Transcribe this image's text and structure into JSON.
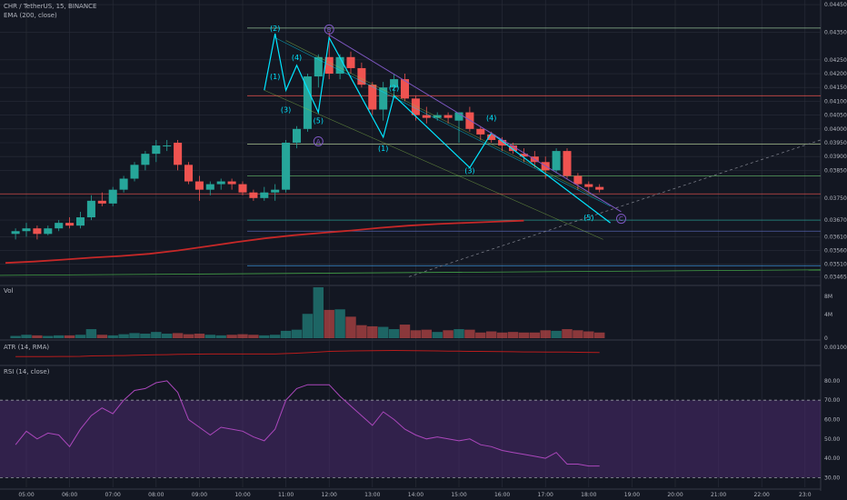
{
  "header": {
    "symbol_line": "CHR / TetherUS, 15, BINANCE",
    "ema_label": "EMA (200, close)",
    "vol_label": "Vol",
    "atr_label": "ATR (14, RMA)",
    "rsi_label": "RSI (14, close)"
  },
  "colors": {
    "background": "#131722",
    "bull": "#26a69a",
    "bear": "#ef5350",
    "ema": "#c62828",
    "wave": "#00e5ff",
    "abc": "#7e57c2",
    "rsi_band": "#4a2a6e",
    "rsi_line": "#ab47bc",
    "grid": "#2a2e39"
  },
  "chart_data": [
    {
      "type": "candlestick",
      "title": "CHR / TetherUS, 15, BINANCE",
      "x_ticks": [
        "05:00",
        "06:00",
        "07:00",
        "08:00",
        "09:00",
        "10:00",
        "11:00",
        "12:00",
        "13:00",
        "14:00",
        "15:00",
        "16:00",
        "17:00",
        "18:00",
        "19:00",
        "20:00",
        "21:00",
        "22:00",
        "23:0"
      ],
      "y_ticks": [
        "0.04450",
        "0.04350",
        "0.04250",
        "0.04200",
        "0.04150",
        "0.04100",
        "0.04050",
        "0.04000",
        "0.03950",
        "0.03900",
        "0.03850",
        "0.03750",
        "0.03670",
        "0.03610",
        "0.03560",
        "0.03510",
        "0.03465"
      ],
      "ylim": [
        0.0344,
        0.0446
      ],
      "x_start": "04:45",
      "bar_minutes": 15,
      "candles": [
        {
          "o": 0.0362,
          "h": 0.0364,
          "l": 0.036,
          "c": 0.0363
        },
        {
          "o": 0.0363,
          "h": 0.0366,
          "l": 0.0361,
          "c": 0.0364
        },
        {
          "o": 0.0364,
          "h": 0.0365,
          "l": 0.036,
          "c": 0.0362
        },
        {
          "o": 0.0362,
          "h": 0.0365,
          "l": 0.03615,
          "c": 0.0364
        },
        {
          "o": 0.0364,
          "h": 0.0367,
          "l": 0.0363,
          "c": 0.0366
        },
        {
          "o": 0.0366,
          "h": 0.0368,
          "l": 0.0364,
          "c": 0.0365
        },
        {
          "o": 0.0365,
          "h": 0.037,
          "l": 0.0364,
          "c": 0.0368
        },
        {
          "o": 0.0368,
          "h": 0.0376,
          "l": 0.0367,
          "c": 0.0374
        },
        {
          "o": 0.0374,
          "h": 0.0377,
          "l": 0.0372,
          "c": 0.0373
        },
        {
          "o": 0.0373,
          "h": 0.0379,
          "l": 0.0372,
          "c": 0.0378
        },
        {
          "o": 0.0378,
          "h": 0.0383,
          "l": 0.0377,
          "c": 0.0382
        },
        {
          "o": 0.0382,
          "h": 0.0388,
          "l": 0.0381,
          "c": 0.0387
        },
        {
          "o": 0.0387,
          "h": 0.0392,
          "l": 0.0385,
          "c": 0.0391
        },
        {
          "o": 0.0391,
          "h": 0.0396,
          "l": 0.0388,
          "c": 0.0394
        },
        {
          "o": 0.0394,
          "h": 0.0396,
          "l": 0.0392,
          "c": 0.0394
        },
        {
          "o": 0.0395,
          "h": 0.0396,
          "l": 0.0385,
          "c": 0.0387
        },
        {
          "o": 0.0387,
          "h": 0.0388,
          "l": 0.038,
          "c": 0.0381
        },
        {
          "o": 0.0381,
          "h": 0.0383,
          "l": 0.0374,
          "c": 0.0378
        },
        {
          "o": 0.0378,
          "h": 0.0381,
          "l": 0.0376,
          "c": 0.038
        },
        {
          "o": 0.038,
          "h": 0.0382,
          "l": 0.0378,
          "c": 0.0381
        },
        {
          "o": 0.0381,
          "h": 0.0382,
          "l": 0.0378,
          "c": 0.038
        },
        {
          "o": 0.038,
          "h": 0.0381,
          "l": 0.0376,
          "c": 0.0377
        },
        {
          "o": 0.0377,
          "h": 0.0378,
          "l": 0.0374,
          "c": 0.0375
        },
        {
          "o": 0.0375,
          "h": 0.0379,
          "l": 0.0374,
          "c": 0.0377
        },
        {
          "o": 0.0377,
          "h": 0.038,
          "l": 0.0374,
          "c": 0.0378
        },
        {
          "o": 0.0378,
          "h": 0.0396,
          "l": 0.0377,
          "c": 0.0395
        },
        {
          "o": 0.0395,
          "h": 0.0401,
          "l": 0.0393,
          "c": 0.04
        },
        {
          "o": 0.04,
          "h": 0.042,
          "l": 0.0399,
          "c": 0.0419
        },
        {
          "o": 0.0419,
          "h": 0.0427,
          "l": 0.0415,
          "c": 0.0426
        },
        {
          "o": 0.0426,
          "h": 0.0435,
          "l": 0.0418,
          "c": 0.042
        },
        {
          "o": 0.042,
          "h": 0.0427,
          "l": 0.0418,
          "c": 0.0426
        },
        {
          "o": 0.0426,
          "h": 0.0428,
          "l": 0.042,
          "c": 0.0422
        },
        {
          "o": 0.0422,
          "h": 0.0424,
          "l": 0.0415,
          "c": 0.0416
        },
        {
          "o": 0.0416,
          "h": 0.0417,
          "l": 0.0405,
          "c": 0.0407
        },
        {
          "o": 0.0407,
          "h": 0.0417,
          "l": 0.0403,
          "c": 0.0415
        },
        {
          "o": 0.0415,
          "h": 0.042,
          "l": 0.0412,
          "c": 0.0418
        },
        {
          "o": 0.0418,
          "h": 0.042,
          "l": 0.041,
          "c": 0.0411
        },
        {
          "o": 0.0411,
          "h": 0.0412,
          "l": 0.0403,
          "c": 0.0405
        },
        {
          "o": 0.0405,
          "h": 0.0408,
          "l": 0.0402,
          "c": 0.0404
        },
        {
          "o": 0.0404,
          "h": 0.0406,
          "l": 0.0403,
          "c": 0.0405
        },
        {
          "o": 0.0405,
          "h": 0.0406,
          "l": 0.0402,
          "c": 0.0404
        },
        {
          "o": 0.0403,
          "h": 0.0406,
          "l": 0.0395,
          "c": 0.0406
        },
        {
          "o": 0.0406,
          "h": 0.0408,
          "l": 0.0399,
          "c": 0.04
        },
        {
          "o": 0.04,
          "h": 0.0401,
          "l": 0.0396,
          "c": 0.0398
        },
        {
          "o": 0.0398,
          "h": 0.0399,
          "l": 0.0395,
          "c": 0.0396
        },
        {
          "o": 0.0396,
          "h": 0.0397,
          "l": 0.0392,
          "c": 0.0394
        },
        {
          "o": 0.0394,
          "h": 0.0395,
          "l": 0.0391,
          "c": 0.0392
        },
        {
          "o": 0.0391,
          "h": 0.0393,
          "l": 0.0388,
          "c": 0.039
        },
        {
          "o": 0.039,
          "h": 0.0392,
          "l": 0.0386,
          "c": 0.0388
        },
        {
          "o": 0.0388,
          "h": 0.039,
          "l": 0.0382,
          "c": 0.0385
        },
        {
          "o": 0.0385,
          "h": 0.0393,
          "l": 0.0384,
          "c": 0.0392
        },
        {
          "o": 0.0392,
          "h": 0.0393,
          "l": 0.0382,
          "c": 0.0383
        },
        {
          "o": 0.0383,
          "h": 0.0384,
          "l": 0.0378,
          "c": 0.038
        },
        {
          "o": 0.038,
          "h": 0.0381,
          "l": 0.0377,
          "c": 0.0379
        },
        {
          "o": 0.0379,
          "h": 0.038,
          "l": 0.0377,
          "c": 0.0378
        }
      ],
      "ema_200": [
        0.03515,
        0.0352,
        0.03527,
        0.03534,
        0.0354,
        0.03548,
        0.0356,
        0.03575,
        0.0359,
        0.03604,
        0.03615,
        0.03624,
        0.03632,
        0.03642,
        0.0365,
        0.03656,
        0.0366,
        0.03664,
        0.03668
      ],
      "ema_x_end": "16:30",
      "wave_labels": [
        {
          "t": "(2)",
          "x": "10:45",
          "y": 0.04355
        },
        {
          "t": "(1)",
          "x": "10:45",
          "y": 0.0418
        },
        {
          "t": "(4)",
          "x": "11:15",
          "y": 0.0425
        },
        {
          "t": "(3)",
          "x": "11:00",
          "y": 0.0406
        },
        {
          "t": "(5)",
          "x": "11:45",
          "y": 0.0402
        },
        {
          "t": "(2)",
          "x": "13:30",
          "y": 0.0414
        },
        {
          "t": "(1)",
          "x": "13:15",
          "y": 0.0392
        },
        {
          "t": "(4)",
          "x": "15:45",
          "y": 0.0403
        },
        {
          "t": "(3)",
          "x": "15:15",
          "y": 0.0384
        },
        {
          "t": "(5)",
          "x": "18:00",
          "y": 0.0367
        }
      ],
      "abc_labels": [
        {
          "t": "A",
          "x": "11:45",
          "y": 0.03955
        },
        {
          "t": "B",
          "x": "12:00",
          "y": 0.0436
        },
        {
          "t": "C",
          "x": "18:45",
          "y": 0.03675
        }
      ]
    },
    {
      "type": "bar",
      "title": "Vol",
      "y_ticks": [
        "8M",
        "4M",
        "0"
      ],
      "ylim": [
        0,
        9
      ],
      "values": [
        0.4,
        0.6,
        0.5,
        0.4,
        0.5,
        0.5,
        0.6,
        1.6,
        0.6,
        0.5,
        0.7,
        0.9,
        0.8,
        1.1,
        0.8,
        0.9,
        0.7,
        0.8,
        0.6,
        0.5,
        0.6,
        0.7,
        0.6,
        0.5,
        0.6,
        1.3,
        1.5,
        4.3,
        9.0,
        5.0,
        5.1,
        3.8,
        2.3,
        2.1,
        2.0,
        1.6,
        2.4,
        1.4,
        1.5,
        1.1,
        1.4,
        1.6,
        1.5,
        1.0,
        1.2,
        1.0,
        1.1,
        1.0,
        1.0,
        1.4,
        1.3,
        1.6,
        1.4,
        1.2,
        1.0
      ]
    },
    {
      "type": "line",
      "title": "ATR (14, RMA)",
      "y_ticks": [
        "0.00100"
      ],
      "values": [
        0.4,
        0.4,
        0.4,
        0.4,
        0.41,
        0.41,
        0.42,
        0.45,
        0.46,
        0.47,
        0.48,
        0.5,
        0.52,
        0.54,
        0.55,
        0.57,
        0.58,
        0.59,
        0.6,
        0.6,
        0.6,
        0.6,
        0.6,
        0.6,
        0.6,
        0.63,
        0.66,
        0.7,
        0.75,
        0.8,
        0.82,
        0.83,
        0.84,
        0.85,
        0.86,
        0.87,
        0.86,
        0.85,
        0.84,
        0.83,
        0.82,
        0.81,
        0.8,
        0.8,
        0.79,
        0.78,
        0.77,
        0.76,
        0.76,
        0.75,
        0.75,
        0.74,
        0.73,
        0.72,
        0.71
      ]
    },
    {
      "type": "line",
      "title": "RSI (14, close)",
      "y_ticks": [
        "80.00",
        "70.00",
        "60.00",
        "50.00",
        "40.00",
        "30.00"
      ],
      "ylim": [
        25,
        87
      ],
      "band": [
        30,
        70
      ],
      "values": [
        47,
        54,
        50,
        53,
        52,
        46,
        55,
        62,
        66,
        63,
        70,
        75,
        76,
        79,
        80,
        74,
        60,
        56,
        52,
        56,
        55,
        54,
        51,
        49,
        55,
        70,
        76,
        78,
        78,
        78,
        72,
        67,
        62,
        57,
        64,
        60,
        55,
        52,
        50,
        51,
        50,
        49,
        50,
        47,
        46,
        44,
        43,
        42,
        41,
        40,
        43,
        37,
        37,
        36,
        36
      ]
    }
  ]
}
